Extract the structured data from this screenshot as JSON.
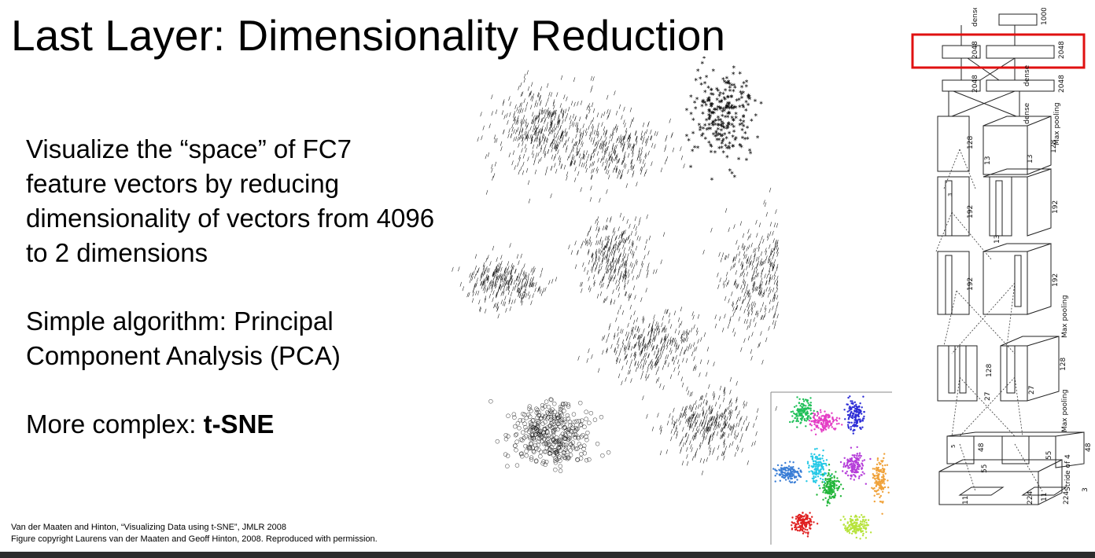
{
  "slide": {
    "title": "Last Layer: Dimensionality Reduction",
    "paragraphs": {
      "p1": "Visualize the “space” of FC7 feature vectors by reducing dimensionality of vectors from 4096 to 2 dimensions",
      "p2": "Simple algorithm: Principal Component Analysis (PCA)",
      "p3_prefix": "More complex: ",
      "p3_bold": "t-SNE"
    },
    "citation": {
      "line1": "Van der Maaten and Hinton, “Visualizing Data using t-SNE”, JMLR 2008",
      "line2": "Figure copyright Laurens van der Maaten and Geoff Hinton, 2008. Reproduced with permission."
    }
  },
  "figures": {
    "tsne_digits": {
      "description_name": "t-SNE embedding of handwritten digits"
    },
    "tsne_inset": {
      "cluster_colors": [
        "#21c05a",
        "#e43dc5",
        "#2d2dd6",
        "#3a7ed6",
        "#27c9e6",
        "#22b63a",
        "#b53dd9",
        "#f0a23a",
        "#e02020",
        "#b6e33a"
      ]
    },
    "alexnet": {
      "highlight_color": "#e01010",
      "labels": {
        "dense_top": "dense",
        "n1000": "1000",
        "n2048_a": "2048",
        "n2048_b": "2048",
        "n2048_c": "2048",
        "n2048_d": "2048",
        "dense_mid": "dense",
        "dense_low": "dense",
        "max_pooling_1": "Max pooling",
        "n128_a": "128",
        "n128_b": "128",
        "n13_a": "13",
        "n13_b": "13",
        "n13_c": "13",
        "n192_a": "192",
        "n192_b": "192",
        "n192_c": "192",
        "n192_d": "192",
        "max_pooling_2": "Max pooling",
        "n128_c": "128",
        "n128_d": "128",
        "n27_a": "27",
        "n27_b": "27",
        "max_pooling_3": "Max pooling",
        "n48_a": "48",
        "n48_b": "48",
        "n55_a": "55",
        "n55_b": "55",
        "stride": "Stride of 4",
        "n224_a": "224",
        "n224_b": "224",
        "n11_a": "11",
        "n11_b": "11",
        "n3": "3",
        "k3": "3",
        "k5": "5"
      }
    }
  }
}
